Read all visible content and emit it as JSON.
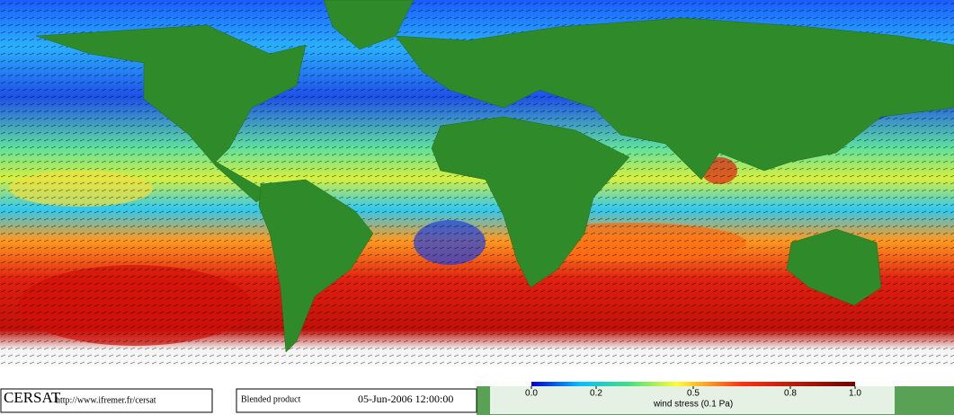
{
  "footer": {
    "brand": "CERSAT",
    "url": "http://www.ifremer.fr/cersat",
    "product": "Blended product",
    "date": "05-Jun-2006 12:00:00"
  },
  "colorbar": {
    "title": "wind stress (0.1 Pa)",
    "range": [
      0,
      1
    ],
    "ticks": [
      {
        "value": 0,
        "label": "0.0"
      },
      0.2,
      0.5,
      0.8,
      {
        "value": 1,
        "label": "1.0"
      }
    ]
  }
}
